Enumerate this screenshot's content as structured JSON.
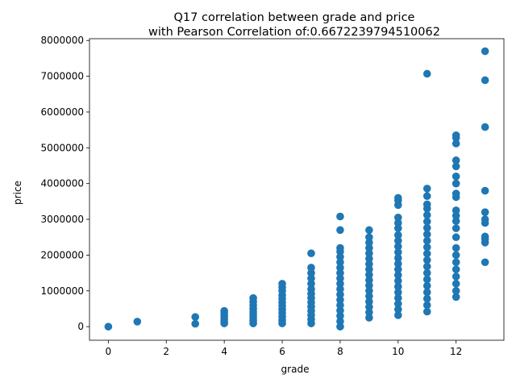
{
  "chart_data": {
    "type": "scatter",
    "title": "Q17 correlation between grade and price\nwith Pearson Correlation of:0.6672239794510062",
    "xlabel": "grade",
    "ylabel": "price",
    "xlim": [
      -0.65,
      13.65
    ],
    "ylim": [
      -380000,
      8050000
    ],
    "xticks": [
      0,
      2,
      4,
      6,
      8,
      10,
      12
    ],
    "yticks": [
      0,
      1000000,
      2000000,
      3000000,
      4000000,
      5000000,
      6000000,
      7000000,
      8000000
    ],
    "ytick_labels": [
      "0",
      "1000000",
      "2000000",
      "3000000",
      "4000000",
      "5000000",
      "6000000",
      "7000000",
      "8000000"
    ],
    "grid": false,
    "point_color": "#1f77b4",
    "series": [
      {
        "points": [
          [
            0,
            0
          ],
          [
            1,
            140000
          ],
          [
            3,
            80000
          ],
          [
            3,
            270000
          ],
          [
            4,
            90000
          ],
          [
            4,
            150000
          ],
          [
            4,
            220000
          ],
          [
            4,
            300000
          ],
          [
            4,
            380000
          ],
          [
            4,
            440000
          ],
          [
            5,
            90000
          ],
          [
            5,
            170000
          ],
          [
            5,
            250000
          ],
          [
            5,
            330000
          ],
          [
            5,
            410000
          ],
          [
            5,
            500000
          ],
          [
            5,
            600000
          ],
          [
            5,
            700000
          ],
          [
            5,
            800000
          ],
          [
            6,
            90000
          ],
          [
            6,
            180000
          ],
          [
            6,
            280000
          ],
          [
            6,
            380000
          ],
          [
            6,
            480000
          ],
          [
            6,
            580000
          ],
          [
            6,
            680000
          ],
          [
            6,
            780000
          ],
          [
            6,
            880000
          ],
          [
            6,
            1000000
          ],
          [
            6,
            1100000
          ],
          [
            6,
            1200000
          ],
          [
            7,
            90000
          ],
          [
            7,
            200000
          ],
          [
            7,
            320000
          ],
          [
            7,
            440000
          ],
          [
            7,
            560000
          ],
          [
            7,
            680000
          ],
          [
            7,
            800000
          ],
          [
            7,
            920000
          ],
          [
            7,
            1050000
          ],
          [
            7,
            1200000
          ],
          [
            7,
            1350000
          ],
          [
            7,
            1500000
          ],
          [
            7,
            1650000
          ],
          [
            7,
            2050000
          ],
          [
            8,
            0
          ],
          [
            8,
            150000
          ],
          [
            8,
            300000
          ],
          [
            8,
            450000
          ],
          [
            8,
            600000
          ],
          [
            8,
            750000
          ],
          [
            8,
            900000
          ],
          [
            8,
            1050000
          ],
          [
            8,
            1200000
          ],
          [
            8,
            1350000
          ],
          [
            8,
            1500000
          ],
          [
            8,
            1650000
          ],
          [
            8,
            1800000
          ],
          [
            8,
            1950000
          ],
          [
            8,
            2100000
          ],
          [
            8,
            2200000
          ],
          [
            8,
            2700000
          ],
          [
            8,
            3080000
          ],
          [
            9,
            250000
          ],
          [
            9,
            400000
          ],
          [
            9,
            550000
          ],
          [
            9,
            700000
          ],
          [
            9,
            850000
          ],
          [
            9,
            1000000
          ],
          [
            9,
            1150000
          ],
          [
            9,
            1300000
          ],
          [
            9,
            1450000
          ],
          [
            9,
            1600000
          ],
          [
            9,
            1750000
          ],
          [
            9,
            1900000
          ],
          [
            9,
            2050000
          ],
          [
            9,
            2200000
          ],
          [
            9,
            2350000
          ],
          [
            9,
            2500000
          ],
          [
            9,
            2700000
          ],
          [
            10,
            320000
          ],
          [
            10,
            480000
          ],
          [
            10,
            640000
          ],
          [
            10,
            800000
          ],
          [
            10,
            960000
          ],
          [
            10,
            1120000
          ],
          [
            10,
            1280000
          ],
          [
            10,
            1440000
          ],
          [
            10,
            1600000
          ],
          [
            10,
            1760000
          ],
          [
            10,
            1920000
          ],
          [
            10,
            2080000
          ],
          [
            10,
            2240000
          ],
          [
            10,
            2400000
          ],
          [
            10,
            2560000
          ],
          [
            10,
            2750000
          ],
          [
            10,
            2900000
          ],
          [
            10,
            3050000
          ],
          [
            10,
            3400000
          ],
          [
            10,
            3530000
          ],
          [
            10,
            3600000
          ],
          [
            11,
            420000
          ],
          [
            11,
            600000
          ],
          [
            11,
            780000
          ],
          [
            11,
            960000
          ],
          [
            11,
            1140000
          ],
          [
            11,
            1320000
          ],
          [
            11,
            1500000
          ],
          [
            11,
            1680000
          ],
          [
            11,
            1860000
          ],
          [
            11,
            2040000
          ],
          [
            11,
            2220000
          ],
          [
            11,
            2400000
          ],
          [
            11,
            2580000
          ],
          [
            11,
            2760000
          ],
          [
            11,
            2940000
          ],
          [
            11,
            3120000
          ],
          [
            11,
            3300000
          ],
          [
            11,
            3420000
          ],
          [
            11,
            3650000
          ],
          [
            11,
            3860000
          ],
          [
            11,
            7070000
          ],
          [
            12,
            830000
          ],
          [
            12,
            1000000
          ],
          [
            12,
            1200000
          ],
          [
            12,
            1400000
          ],
          [
            12,
            1600000
          ],
          [
            12,
            1800000
          ],
          [
            12,
            2000000
          ],
          [
            12,
            2200000
          ],
          [
            12,
            2500000
          ],
          [
            12,
            2750000
          ],
          [
            12,
            2950000
          ],
          [
            12,
            3100000
          ],
          [
            12,
            3250000
          ],
          [
            12,
            3620000
          ],
          [
            12,
            3720000
          ],
          [
            12,
            4000000
          ],
          [
            12,
            4200000
          ],
          [
            12,
            4480000
          ],
          [
            12,
            4650000
          ],
          [
            12,
            5120000
          ],
          [
            12,
            5280000
          ],
          [
            12,
            5350000
          ],
          [
            13,
            1800000
          ],
          [
            13,
            2350000
          ],
          [
            13,
            2450000
          ],
          [
            13,
            2520000
          ],
          [
            13,
            2900000
          ],
          [
            13,
            3000000
          ],
          [
            13,
            3200000
          ],
          [
            13,
            3800000
          ],
          [
            13,
            5580000
          ],
          [
            13,
            6890000
          ],
          [
            13,
            7700000
          ]
        ]
      }
    ]
  }
}
